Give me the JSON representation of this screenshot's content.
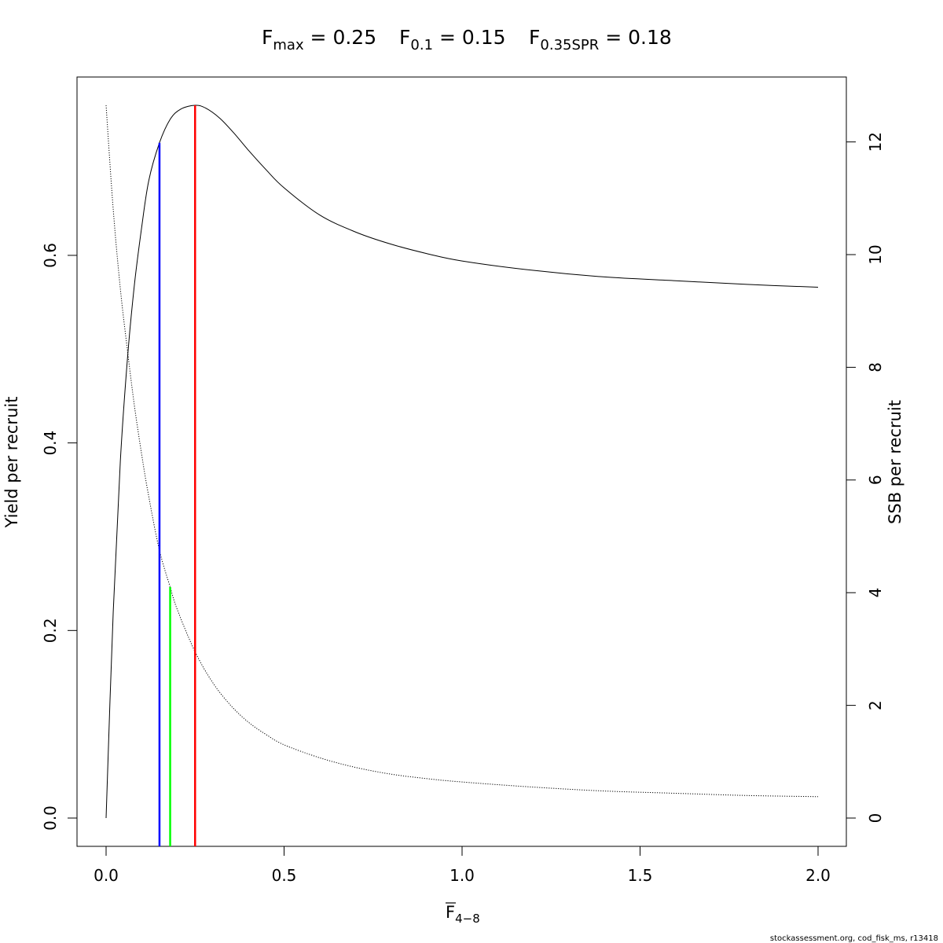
{
  "chart_data": {
    "type": "line",
    "title": {
      "fmax": {
        "base": "F",
        "sub": "max",
        "rest": " = 0.25"
      },
      "f01": {
        "base": "F",
        "sub": "0.1",
        "rest": " = 0.15"
      },
      "fspr": {
        "base": "F",
        "sub": "0.35SPR",
        "rest": " = 0.18"
      }
    },
    "xlabel": {
      "base": "F",
      "sub": "4−8"
    },
    "ylabel_left": "Yield per recruit",
    "ylabel_right": "SSB per recruit",
    "xlim": [
      0,
      2
    ],
    "ylim_left": [
      0,
      0.76
    ],
    "ylim_right": [
      0,
      12.65
    ],
    "x_ticks": [
      "0.0",
      "0.5",
      "1.0",
      "1.5",
      "2.0"
    ],
    "y_left_ticks": [
      "0.0",
      "0.2",
      "0.4",
      "0.6"
    ],
    "y_right_ticks": [
      "0",
      "2",
      "4",
      "6",
      "8",
      "10",
      "12"
    ],
    "series": [
      {
        "axis": "left",
        "style": "solid",
        "points": [
          [
            0,
            0
          ],
          [
            0.02,
            0.22
          ],
          [
            0.04,
            0.38
          ],
          [
            0.06,
            0.49
          ],
          [
            0.08,
            0.57
          ],
          [
            0.1,
            0.63
          ],
          [
            0.12,
            0.68
          ],
          [
            0.15,
            0.72
          ],
          [
            0.18,
            0.745
          ],
          [
            0.21,
            0.756
          ],
          [
            0.25,
            0.76
          ],
          [
            0.28,
            0.757
          ],
          [
            0.32,
            0.746
          ],
          [
            0.36,
            0.73
          ],
          [
            0.4,
            0.712
          ],
          [
            0.45,
            0.691
          ],
          [
            0.5,
            0.672
          ],
          [
            0.6,
            0.643
          ],
          [
            0.7,
            0.625
          ],
          [
            0.8,
            0.612
          ],
          [
            0.9,
            0.602
          ],
          [
            1.0,
            0.594
          ],
          [
            1.2,
            0.584
          ],
          [
            1.4,
            0.577
          ],
          [
            1.6,
            0.573
          ],
          [
            1.8,
            0.569
          ],
          [
            2.0,
            0.566
          ]
        ]
      },
      {
        "axis": "right",
        "style": "dotted",
        "points": [
          [
            0,
            12.65
          ],
          [
            0.02,
            10.8
          ],
          [
            0.04,
            9.4
          ],
          [
            0.06,
            8.3
          ],
          [
            0.08,
            7.3
          ],
          [
            0.1,
            6.45
          ],
          [
            0.12,
            5.7
          ],
          [
            0.15,
            4.75
          ],
          [
            0.18,
            4.1
          ],
          [
            0.2,
            3.7
          ],
          [
            0.25,
            2.95
          ],
          [
            0.3,
            2.4
          ],
          [
            0.35,
            2.0
          ],
          [
            0.4,
            1.7
          ],
          [
            0.45,
            1.48
          ],
          [
            0.5,
            1.3
          ],
          [
            0.6,
            1.07
          ],
          [
            0.7,
            0.9
          ],
          [
            0.8,
            0.78
          ],
          [
            0.9,
            0.7
          ],
          [
            1.0,
            0.64
          ],
          [
            1.2,
            0.55
          ],
          [
            1.4,
            0.48
          ],
          [
            1.6,
            0.44
          ],
          [
            1.8,
            0.4
          ],
          [
            2.0,
            0.38
          ]
        ]
      }
    ],
    "ref_lines": [
      {
        "name": "F0.1",
        "x": 0.15,
        "y_top": 0.72,
        "axis": "left",
        "color": "#0000ff"
      },
      {
        "name": "F0.35SPR",
        "x": 0.18,
        "y_top": 4.1,
        "axis": "right",
        "color": "#00ff00"
      },
      {
        "name": "Fmax",
        "x": 0.25,
        "y_top": 0.76,
        "axis": "left",
        "color": "#ff0000"
      }
    ]
  },
  "footer": "stockassessment.org, cod_fisk_ms, r13418"
}
